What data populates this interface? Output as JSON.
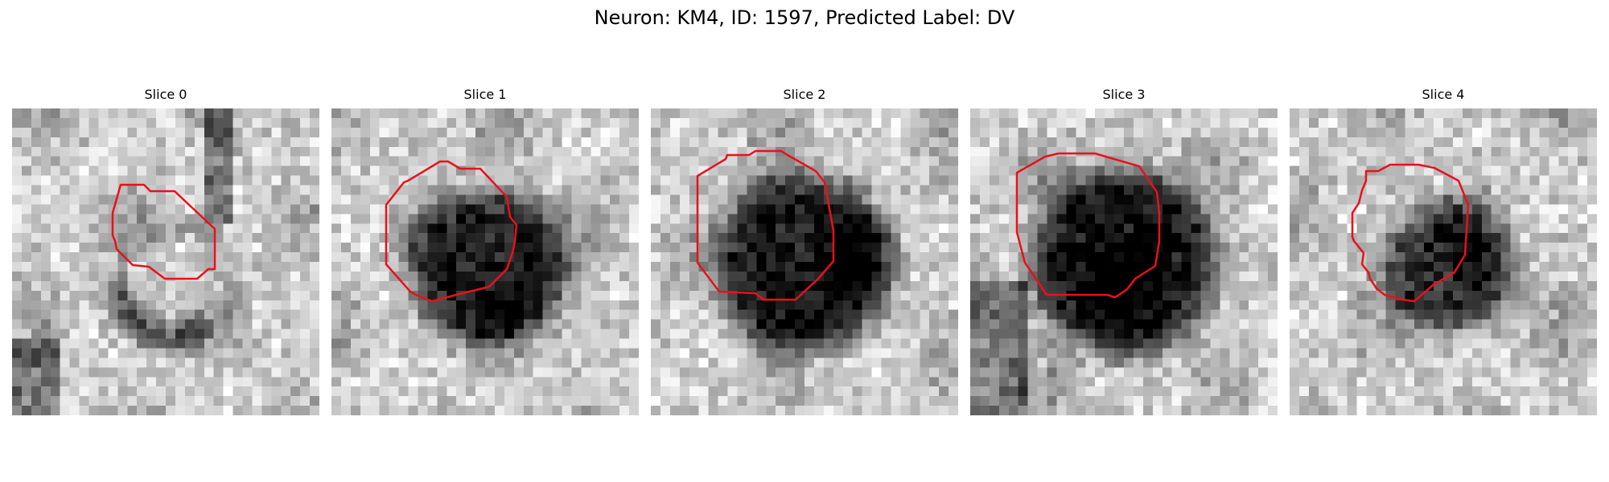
{
  "figure": {
    "title": "Neuron: KM4, ID: 1597, Predicted Label: DV"
  },
  "colors": {
    "contour": "#e8111b",
    "background": "#ffffff"
  },
  "panels": [
    {
      "title": "Slice 0"
    },
    {
      "title": "Slice 1"
    },
    {
      "title": "Slice 2"
    },
    {
      "title": "Slice 3"
    },
    {
      "title": "Slice 4"
    }
  ]
}
